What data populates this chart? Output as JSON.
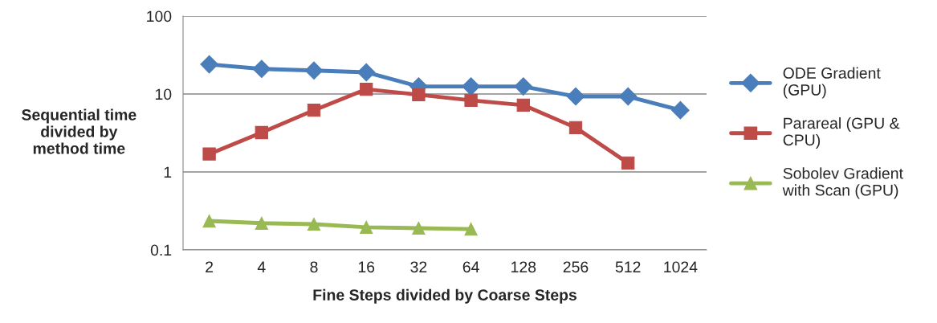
{
  "chart_data": {
    "type": "line",
    "xlabel": "Fine Steps divided by Coarse Steps",
    "ylabel": "Sequential time divided by method time",
    "categories": [
      "2",
      "4",
      "8",
      "16",
      "32",
      "64",
      "128",
      "256",
      "512",
      "1024"
    ],
    "series": [
      {
        "name": "ODE Gradient (GPU)",
        "color": "#4a7ebb",
        "marker": "diamond",
        "values": [
          24,
          21,
          20,
          19,
          12.5,
          12.5,
          12.5,
          9.3,
          9.3,
          6.2
        ]
      },
      {
        "name": "Parareal (GPU & CPU)",
        "color": "#be4b48",
        "marker": "square",
        "values": [
          1.7,
          3.2,
          6.2,
          11.5,
          9.8,
          8.3,
          7.2,
          3.7,
          1.3,
          null
        ]
      },
      {
        "name": "Sobolev Gradient with Scan (GPU)",
        "color": "#98b954",
        "marker": "triangle",
        "values": [
          0.235,
          0.22,
          0.214,
          0.195,
          0.19,
          0.185,
          null,
          null,
          null,
          null
        ]
      }
    ],
    "log": "y",
    "ylim": [
      0.1,
      100
    ],
    "yticks": [
      {
        "value": 0.1,
        "label": "0.1"
      },
      {
        "value": 1,
        "label": "1"
      },
      {
        "value": 10,
        "label": "10"
      },
      {
        "value": 100,
        "label": "100"
      }
    ],
    "grid": "y",
    "legend": "right",
    "line_style": "solid"
  }
}
